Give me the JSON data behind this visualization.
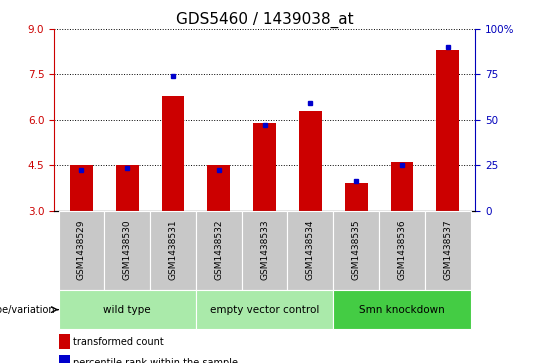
{
  "title": "GDS5460 / 1439038_at",
  "samples": [
    "GSM1438529",
    "GSM1438530",
    "GSM1438531",
    "GSM1438532",
    "GSM1438533",
    "GSM1438534",
    "GSM1438535",
    "GSM1438536",
    "GSM1438537"
  ],
  "red_values": [
    4.5,
    4.5,
    6.8,
    4.5,
    5.9,
    6.3,
    3.9,
    4.6,
    8.3
  ],
  "blue_values": [
    4.35,
    4.4,
    7.45,
    4.35,
    5.82,
    6.55,
    3.97,
    4.5,
    8.4
  ],
  "ylim_left": [
    3,
    9
  ],
  "ylim_right": [
    0,
    100
  ],
  "yticks_left": [
    3,
    4.5,
    6,
    7.5,
    9
  ],
  "yticks_right": [
    0,
    25,
    50,
    75,
    100
  ],
  "bar_width": 0.5,
  "red_color": "#CC0000",
  "blue_color": "#0000CC",
  "bg_color": "#FFFFFF",
  "axis_left_color": "#CC0000",
  "axis_right_color": "#0000BB",
  "title_fontsize": 11,
  "tick_fontsize": 7.5,
  "genotype_label": "genotype/variation",
  "legend_items": [
    "transformed count",
    "percentile rank within the sample"
  ],
  "group_boundaries": [
    {
      "start": 0,
      "end": 2,
      "color": "#AAEAAA",
      "label": "wild type"
    },
    {
      "start": 3,
      "end": 5,
      "color": "#AAEAAA",
      "label": "empty vector control"
    },
    {
      "start": 6,
      "end": 8,
      "color": "#44CC44",
      "label": "Smn knockdown"
    }
  ],
  "sample_box_color": "#C8C8C8"
}
